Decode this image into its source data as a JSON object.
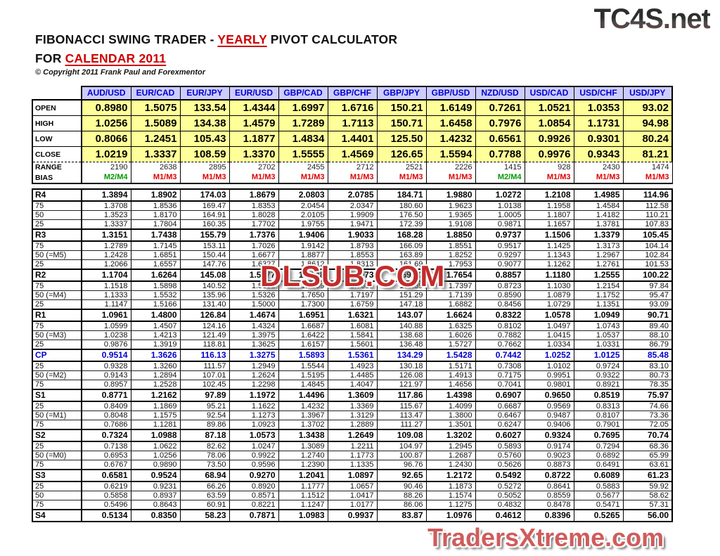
{
  "page": {
    "logo_top": "TC4S.net",
    "watermark": "DLSUB.COM",
    "logo_bottom": "TradersXtreme.com",
    "copyright": "© Copyright 2011 Frank Paul and Forexmentor",
    "title": {
      "p1": "FIBONACCI SWING TRADER - ",
      "hl1": "YEARLY",
      "p2": " PIVOT CALCULATOR",
      "p3": "FOR ",
      "hl2": "CALENDAR 2011"
    }
  },
  "colors": {
    "bias_green": "#009900",
    "bias_red": "#dd0000",
    "header_bg": "#ccccff",
    "header_text": "#0000cc",
    "ohlc_bg": "#ffff99",
    "cp_text": "#0000cc",
    "title_red": "#cc0000"
  },
  "table": {
    "columns": [
      "AUD/USD",
      "EUR/CAD",
      "EUR/JPY",
      "EUR/USD",
      "GBP/CAD",
      "GBP/CHF",
      "GBP/JPY",
      "GBP/USD",
      "NZD/USD",
      "USD/CAD",
      "USD/CHF",
      "USD/JPY"
    ],
    "ohlc_rows": [
      {
        "label": "OPEN",
        "values": [
          "0.8980",
          "1.5075",
          "133.54",
          "1.4344",
          "1.6997",
          "1.6716",
          "150.21",
          "1.6149",
          "0.7261",
          "1.0521",
          "1.0353",
          "93.02"
        ]
      },
      {
        "label": "HIGH",
        "values": [
          "1.0256",
          "1.5089",
          "134.38",
          "1.4579",
          "1.7289",
          "1.7113",
          "150.71",
          "1.6458",
          "0.7976",
          "1.0854",
          "1.1731",
          "94.98"
        ]
      },
      {
        "label": "LOW",
        "values": [
          "0.8066",
          "1.2451",
          "105.43",
          "1.1877",
          "1.4834",
          "1.4401",
          "125.50",
          "1.4232",
          "0.6561",
          "0.9926",
          "0.9301",
          "80.24"
        ]
      },
      {
        "label": "CLOSE",
        "values": [
          "1.0219",
          "1.3337",
          "108.59",
          "1.3370",
          "1.5555",
          "1.4569",
          "126.65",
          "1.5594",
          "0.7788",
          "0.9976",
          "0.9343",
          "81.21"
        ]
      }
    ],
    "range_row": {
      "label": "RANGE",
      "values": [
        "2190",
        "2638",
        "2895",
        "2702",
        "2455",
        "2712",
        "2521",
        "2226",
        "1415",
        "928",
        "2430",
        "1474"
      ]
    },
    "bias_row": {
      "label": "BIAS",
      "values": [
        {
          "text": "M2/M4",
          "tone": "green"
        },
        {
          "text": "M1/M3",
          "tone": "red"
        },
        {
          "text": "M1/M3",
          "tone": "red"
        },
        {
          "text": "M1/M3",
          "tone": "red"
        },
        {
          "text": "M1/M3",
          "tone": "red"
        },
        {
          "text": "M1/M3",
          "tone": "red"
        },
        {
          "text": "M1/M3",
          "tone": "red"
        },
        {
          "text": "M1/M3",
          "tone": "red"
        },
        {
          "text": "M2/M4",
          "tone": "green"
        },
        {
          "text": "M1/M3",
          "tone": "red"
        },
        {
          "text": "M1/M3",
          "tone": "red"
        },
        {
          "text": "M1/M3",
          "tone": "red"
        }
      ]
    },
    "pivot_rows": [
      {
        "label": "R4",
        "type": "main",
        "values": [
          "1.3894",
          "1.8902",
          "174.03",
          "1.8679",
          "2.0803",
          "2.0785",
          "184.71",
          "1.9880",
          "1.0272",
          "1.2108",
          "1.4985",
          "114.96"
        ]
      },
      {
        "label": "75",
        "type": "sub",
        "values": [
          "1.3708",
          "1.8536",
          "169.47",
          "1.8353",
          "2.0454",
          "2.0347",
          "180.60",
          "1.9623",
          "1.0138",
          "1.1958",
          "1.4584",
          "112.58"
        ]
      },
      {
        "label": "50",
        "type": "sub",
        "values": [
          "1.3523",
          "1.8170",
          "164.91",
          "1.8028",
          "2.0105",
          "1.9909",
          "176.50",
          "1.9365",
          "1.0005",
          "1.1807",
          "1.4182",
          "110.21"
        ]
      },
      {
        "label": "25",
        "type": "sub",
        "values": [
          "1.3337",
          "1.7804",
          "160.35",
          "1.7702",
          "1.9755",
          "1.9471",
          "172.39",
          "1.9108",
          "0.9871",
          "1.1657",
          "1.3781",
          "107.83"
        ]
      },
      {
        "label": "R3",
        "type": "main",
        "values": [
          "1.3151",
          "1.7438",
          "155.79",
          "1.7376",
          "1.9406",
          "1.9033",
          "168.28",
          "1.8850",
          "0.9737",
          "1.1506",
          "1.3379",
          "105.45"
        ]
      },
      {
        "label": "75",
        "type": "sub",
        "values": [
          "1.2789",
          "1.7145",
          "153.11",
          "1.7026",
          "1.9142",
          "1.8793",
          "166.09",
          "1.8551",
          "0.9517",
          "1.1425",
          "1.3173",
          "104.14"
        ]
      },
      {
        "label": "50 (=M5)",
        "type": "sub",
        "values": [
          "1.2428",
          "1.6851",
          "150.44",
          "1.6677",
          "1.8877",
          "1.8553",
          "163.89",
          "1.8252",
          "0.9297",
          "1.1343",
          "1.2967",
          "102.84"
        ]
      },
      {
        "label": "25",
        "type": "sub",
        "values": [
          "1.2066",
          "1.6557",
          "147.76",
          "1.6327",
          "1.8612",
          "1.8313",
          "161.69",
          "1.7953",
          "0.9077",
          "1.1262",
          "1.2761",
          "101.53"
        ]
      },
      {
        "label": "R2",
        "type": "main",
        "values": [
          "1.1704",
          "1.6264",
          "145.08",
          "1.5977",
          "1.8348",
          "1.8073",
          "159.50",
          "1.7654",
          "0.8857",
          "1.1180",
          "1.2555",
          "100.22"
        ]
      },
      {
        "label": "75",
        "type": "sub",
        "values": [
          "1.1518",
          "1.5898",
          "140.52",
          "1.5651",
          "1.7999",
          "1.7635",
          "155.39",
          "1.7397",
          "0.8723",
          "1.1030",
          "1.2154",
          "97.84"
        ]
      },
      {
        "label": "50 (=M4)",
        "type": "sub",
        "values": [
          "1.1333",
          "1.5532",
          "135.96",
          "1.5326",
          "1.7650",
          "1.7197",
          "151.29",
          "1.7139",
          "0.8590",
          "1.0879",
          "1.1752",
          "95.47"
        ]
      },
      {
        "label": "25",
        "type": "sub",
        "values": [
          "1.1147",
          "1.5166",
          "131.40",
          "1.5000",
          "1.7300",
          "1.6759",
          "147.18",
          "1.6882",
          "0.8456",
          "1.0729",
          "1.1351",
          "93.09"
        ]
      },
      {
        "label": "R1",
        "type": "main",
        "values": [
          "1.0961",
          "1.4800",
          "126.84",
          "1.4674",
          "1.6951",
          "1.6321",
          "143.07",
          "1.6624",
          "0.8322",
          "1.0578",
          "1.0949",
          "90.71"
        ]
      },
      {
        "label": "75",
        "type": "sub",
        "values": [
          "1.0599",
          "1.4507",
          "124.16",
          "1.4324",
          "1.6687",
          "1.6081",
          "140.88",
          "1.6325",
          "0.8102",
          "1.0497",
          "1.0743",
          "89.40"
        ]
      },
      {
        "label": "50 (=M3)",
        "type": "sub",
        "values": [
          "1.0238",
          "1.4213",
          "121.49",
          "1.3975",
          "1.6422",
          "1.5841",
          "138.68",
          "1.6026",
          "0.7882",
          "1.0415",
          "1.0537",
          "88.10"
        ]
      },
      {
        "label": "25",
        "type": "sub",
        "values": [
          "0.9876",
          "1.3919",
          "118.81",
          "1.3625",
          "1.6157",
          "1.5601",
          "136.48",
          "1.5727",
          "0.7662",
          "1.0334",
          "1.0331",
          "86.79"
        ]
      },
      {
        "label": "CP",
        "type": "cp",
        "values": [
          "0.9514",
          "1.3626",
          "116.13",
          "1.3275",
          "1.5893",
          "1.5361",
          "134.29",
          "1.5428",
          "0.7442",
          "1.0252",
          "1.0125",
          "85.48"
        ]
      },
      {
        "label": "25",
        "type": "sub",
        "values": [
          "0.9328",
          "1.3260",
          "111.57",
          "1.2949",
          "1.5544",
          "1.4923",
          "130.18",
          "1.5171",
          "0.7308",
          "1.0102",
          "0.9724",
          "83.10"
        ]
      },
      {
        "label": "50 (=M2)",
        "type": "sub",
        "values": [
          "0.9143",
          "1.2894",
          "107.01",
          "1.2624",
          "1.5195",
          "1.4485",
          "126.08",
          "1.4913",
          "0.7175",
          "0.9951",
          "0.9322",
          "80.73"
        ]
      },
      {
        "label": "75",
        "type": "sub",
        "values": [
          "0.8957",
          "1.2528",
          "102.45",
          "1.2298",
          "1.4845",
          "1.4047",
          "121.97",
          "1.4656",
          "0.7041",
          "0.9801",
          "0.8921",
          "78.35"
        ]
      },
      {
        "label": "S1",
        "type": "main",
        "values": [
          "0.8771",
          "1.2162",
          "97.89",
          "1.1972",
          "1.4496",
          "1.3609",
          "117.86",
          "1.4398",
          "0.6907",
          "0.9650",
          "0.8519",
          "75.97"
        ]
      },
      {
        "label": "25",
        "type": "sub",
        "values": [
          "0.8409",
          "1.1869",
          "95.21",
          "1.1622",
          "1.4232",
          "1.3369",
          "115.67",
          "1.4099",
          "0.6687",
          "0.9569",
          "0.8313",
          "74.66"
        ]
      },
      {
        "label": "50 (=M1)",
        "type": "sub",
        "values": [
          "0.8048",
          "1.1575",
          "92.54",
          "1.1273",
          "1.3967",
          "1.3129",
          "113.47",
          "1.3800",
          "0.6467",
          "0.9487",
          "0.8107",
          "73.36"
        ]
      },
      {
        "label": "75",
        "type": "sub",
        "values": [
          "0.7686",
          "1.1281",
          "89.86",
          "1.0923",
          "1.3702",
          "1.2889",
          "111.27",
          "1.3501",
          "0.6247",
          "0.9406",
          "0.7901",
          "72.05"
        ]
      },
      {
        "label": "S2",
        "type": "main",
        "values": [
          "0.7324",
          "1.0988",
          "87.18",
          "1.0573",
          "1.3438",
          "1.2649",
          "109.08",
          "1.3202",
          "0.6027",
          "0.9324",
          "0.7695",
          "70.74"
        ]
      },
      {
        "label": "25",
        "type": "sub",
        "values": [
          "0.7138",
          "1.0622",
          "82.62",
          "1.0247",
          "1.3089",
          "1.2211",
          "104.97",
          "1.2945",
          "0.5893",
          "0.9174",
          "0.7294",
          "68.36"
        ]
      },
      {
        "label": "50 (=M0)",
        "type": "sub",
        "values": [
          "0.6953",
          "1.0256",
          "78.06",
          "0.9922",
          "1.2740",
          "1.1773",
          "100.87",
          "1.2687",
          "0.5760",
          "0.9023",
          "0.6892",
          "65.99"
        ]
      },
      {
        "label": "75",
        "type": "sub",
        "values": [
          "0.6767",
          "0.9890",
          "73.50",
          "0.9596",
          "1.2390",
          "1.1335",
          "96.76",
          "1.2430",
          "0.5626",
          "0.8873",
          "0.6491",
          "63.61"
        ]
      },
      {
        "label": "S3",
        "type": "main",
        "values": [
          "0.6581",
          "0.9524",
          "68.94",
          "0.9270",
          "1.2041",
          "1.0897",
          "92.65",
          "1.2172",
          "0.5492",
          "0.8722",
          "0.6089",
          "61.23"
        ]
      },
      {
        "label": "25",
        "type": "sub",
        "values": [
          "0.6219",
          "0.9231",
          "66.26",
          "0.8920",
          "1.1777",
          "1.0657",
          "90.46",
          "1.1873",
          "0.5272",
          "0.8641",
          "0.5883",
          "59.92"
        ]
      },
      {
        "label": "50",
        "type": "sub",
        "values": [
          "0.5858",
          "0.8937",
          "63.59",
          "0.8571",
          "1.1512",
          "1.0417",
          "88.26",
          "1.1574",
          "0.5052",
          "0.8559",
          "0.5677",
          "58.62"
        ]
      },
      {
        "label": "75",
        "type": "sub",
        "values": [
          "0.5496",
          "0.8643",
          "60.91",
          "0.8221",
          "1.1247",
          "1.0177",
          "86.06",
          "1.1275",
          "0.4832",
          "0.8478",
          "0.5471",
          "57.31"
        ]
      },
      {
        "label": "S4",
        "type": "main",
        "values": [
          "0.5134",
          "0.8350",
          "58.23",
          "0.7871",
          "1.0983",
          "0.9937",
          "83.87",
          "1.0976",
          "0.4612",
          "0.8396",
          "0.5265",
          "56.00"
        ]
      }
    ]
  }
}
